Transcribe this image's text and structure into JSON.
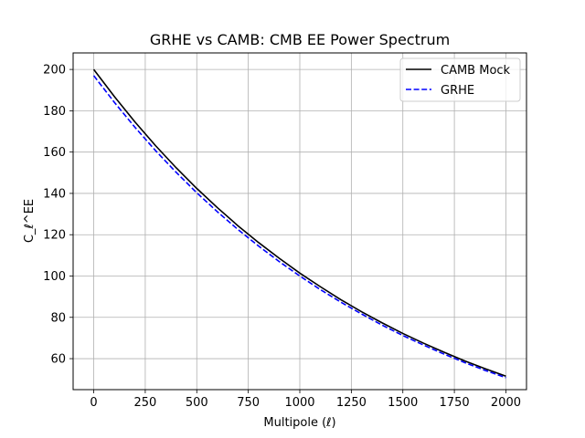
{
  "chart_data": {
    "type": "line",
    "title": "GRHE vs CAMB: CMB EE Power Spectrum",
    "xlabel": "Multipole (ℓ)",
    "ylabel": "C_ℓ^EE",
    "xlim": [
      -100,
      2100
    ],
    "ylim": [
      45,
      208
    ],
    "xticks": [
      0,
      250,
      500,
      750,
      1000,
      1250,
      1500,
      1750,
      2000
    ],
    "yticks": [
      60,
      80,
      100,
      120,
      140,
      160,
      180,
      200
    ],
    "grid": true,
    "legend_position": "top-right",
    "series": [
      {
        "name": "CAMB Mock",
        "color": "#000000",
        "style": "solid",
        "x": [
          0,
          100,
          200,
          300,
          400,
          500,
          600,
          700,
          800,
          900,
          1000,
          1100,
          1200,
          1300,
          1400,
          1500,
          1600,
          1700,
          1800,
          1900,
          2000
        ],
        "y": [
          200,
          186.9,
          174.6,
          163.1,
          152.4,
          142.4,
          133.1,
          124.3,
          116.2,
          108.6,
          101.4,
          94.8,
          88.5,
          82.7,
          77.3,
          72.2,
          67.5,
          63.1,
          58.9,
          55.1,
          51.5
        ]
      },
      {
        "name": "GRHE",
        "color": "#0000ff",
        "style": "dashed",
        "x": [
          0,
          100,
          200,
          300,
          400,
          500,
          600,
          700,
          800,
          900,
          1000,
          1100,
          1200,
          1300,
          1400,
          1500,
          1600,
          1700,
          1800,
          1900,
          2000
        ],
        "y": [
          197,
          184.1,
          172.0,
          160.7,
          150.2,
          140.3,
          131.1,
          122.5,
          114.5,
          107.0,
          100.0,
          93.4,
          87.3,
          81.6,
          76.2,
          71.2,
          66.6,
          62.2,
          58.1,
          54.3,
          50.8
        ]
      }
    ]
  }
}
